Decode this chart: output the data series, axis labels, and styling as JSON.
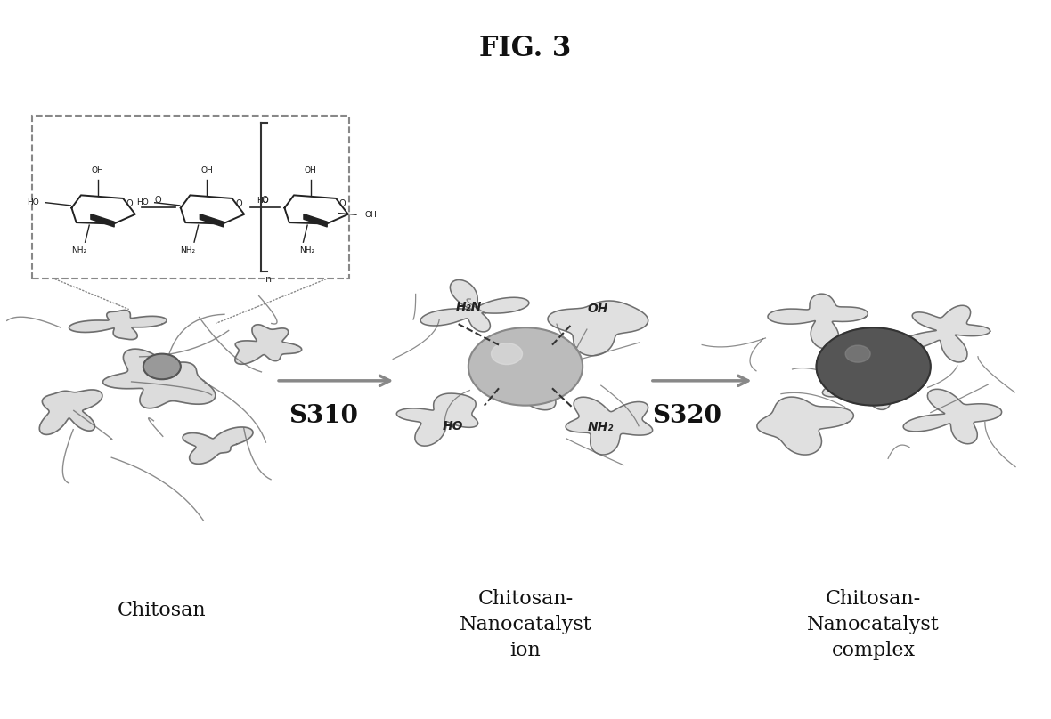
{
  "title": "FIG. 3",
  "title_fontsize": 22,
  "title_fontweight": "bold",
  "bg_color": "#ffffff",
  "labels": {
    "chitosan": "Chitosan",
    "middle": "Chitosan-\nNanocatalyst\nion",
    "right": "Chitosan-\nNanocatalyst\ncomplex"
  },
  "step_labels": {
    "s310": "S310",
    "s320": "S320"
  },
  "text_color": "#111111",
  "label_fontsize": 16,
  "step_fontsize": 20,
  "fig_width": 11.8,
  "fig_height": 8.08,
  "dpi": 100
}
